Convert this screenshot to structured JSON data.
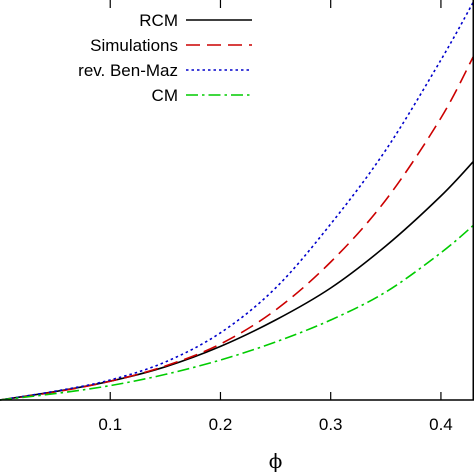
{
  "chart_data": {
    "type": "line",
    "xlabel": "ϕ",
    "ylabel": "",
    "title": "",
    "xlim": [
      0.0,
      0.43
    ],
    "ylim": [
      0.0,
      1.0
    ],
    "x_ticks": [
      "0.1",
      "0.2",
      "0.3",
      "0.4"
    ],
    "x_tick_values": [
      0.1,
      0.2,
      0.3,
      0.4
    ],
    "legend_position": "top-right",
    "grid": false,
    "series": [
      {
        "name": "RCM",
        "color": "#000000",
        "dash": "solid",
        "x": [
          0.0,
          0.05,
          0.1,
          0.15,
          0.2,
          0.25,
          0.3,
          0.35,
          0.4,
          0.43
        ],
        "y": [
          0.0,
          0.021,
          0.047,
          0.083,
          0.134,
          0.2,
          0.28,
          0.385,
          0.51,
          0.598
        ]
      },
      {
        "name": "Simulations",
        "color": "#cc0000",
        "dash": "dashed",
        "x": [
          0.0,
          0.05,
          0.1,
          0.15,
          0.2,
          0.25,
          0.3,
          0.35,
          0.4,
          0.43
        ],
        "y": [
          0.0,
          0.02,
          0.047,
          0.085,
          0.14,
          0.225,
          0.345,
          0.5,
          0.705,
          0.862
        ]
      },
      {
        "name": "rev. Ben-Maz",
        "color": "#0000cc",
        "dash": "dotted",
        "x": [
          0.0,
          0.05,
          0.1,
          0.15,
          0.2,
          0.25,
          0.3,
          0.35,
          0.4,
          0.43
        ],
        "y": [
          0.0,
          0.022,
          0.05,
          0.095,
          0.168,
          0.28,
          0.44,
          0.625,
          0.85,
          0.998
        ]
      },
      {
        "name": "CM",
        "color": "#00cc00",
        "dash": "dashdot",
        "x": [
          0.0,
          0.05,
          0.1,
          0.15,
          0.2,
          0.25,
          0.3,
          0.35,
          0.4,
          0.43
        ],
        "y": [
          0.0,
          0.016,
          0.036,
          0.064,
          0.1,
          0.145,
          0.2,
          0.27,
          0.368,
          0.438
        ]
      }
    ]
  }
}
